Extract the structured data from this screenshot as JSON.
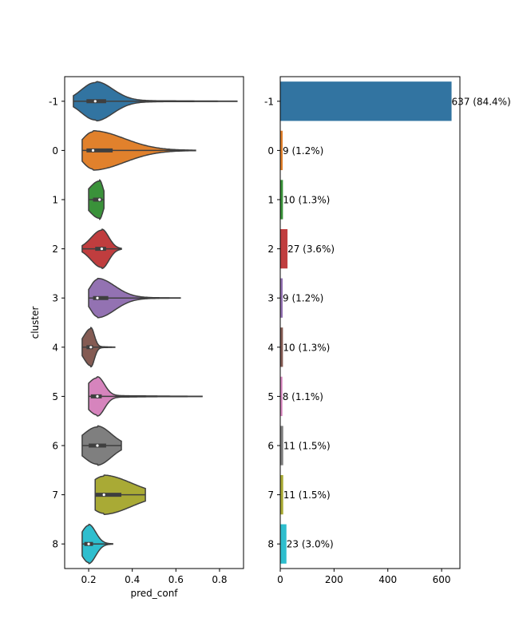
{
  "chart_data": [
    {
      "type": "violin",
      "xlabel": "pred_conf",
      "ylabel": "cluster",
      "xlim": [
        0.09,
        0.91
      ],
      "xticks": [
        "0.2",
        "0.4",
        "0.6",
        "0.8"
      ],
      "xtick_values": [
        0.2,
        0.4,
        0.6,
        0.8
      ],
      "categories": [
        "-1",
        "0",
        "1",
        "2",
        "3",
        "4",
        "5",
        "6",
        "7",
        "8"
      ],
      "series": [
        {
          "cluster": "-1",
          "min": 0.13,
          "max": 0.88,
          "q1": 0.19,
          "median": 0.23,
          "q3": 0.28,
          "color": "#3274a1"
        },
        {
          "cluster": "0",
          "min": 0.17,
          "max": 0.69,
          "q1": 0.19,
          "median": 0.22,
          "q3": 0.31,
          "color": "#e1812c"
        },
        {
          "cluster": "1",
          "min": 0.2,
          "max": 0.27,
          "q1": 0.22,
          "median": 0.25,
          "q3": 0.26,
          "color": "#3a923a"
        },
        {
          "cluster": "2",
          "min": 0.17,
          "max": 0.35,
          "q1": 0.23,
          "median": 0.26,
          "q3": 0.28,
          "color": "#c03d3e"
        },
        {
          "cluster": "3",
          "min": 0.2,
          "max": 0.62,
          "q1": 0.22,
          "median": 0.24,
          "q3": 0.29,
          "color": "#9372b2"
        },
        {
          "cluster": "4",
          "min": 0.17,
          "max": 0.32,
          "q1": 0.19,
          "median": 0.21,
          "q3": 0.22,
          "color": "#845b53"
        },
        {
          "cluster": "5",
          "min": 0.2,
          "max": 0.72,
          "q1": 0.21,
          "median": 0.24,
          "q3": 0.26,
          "color": "#d684bd"
        },
        {
          "cluster": "6",
          "min": 0.17,
          "max": 0.35,
          "q1": 0.2,
          "median": 0.24,
          "q3": 0.28,
          "color": "#7f7f7f"
        },
        {
          "cluster": "7",
          "min": 0.23,
          "max": 0.46,
          "q1": 0.23,
          "median": 0.27,
          "q3": 0.35,
          "color": "#a9aa35"
        },
        {
          "cluster": "8",
          "min": 0.17,
          "max": 0.31,
          "q1": 0.18,
          "median": 0.2,
          "q3": 0.22,
          "color": "#2ebece"
        }
      ]
    },
    {
      "type": "bar",
      "orientation": "horizontal",
      "xlim": [
        0,
        668
      ],
      "xticks": [
        "0",
        "200",
        "400",
        "600"
      ],
      "xtick_values": [
        0,
        200,
        400,
        600
      ],
      "categories": [
        "-1",
        "0",
        "1",
        "2",
        "3",
        "4",
        "5",
        "6",
        "7",
        "8"
      ],
      "values": [
        637,
        9,
        10,
        27,
        9,
        10,
        8,
        11,
        11,
        23
      ],
      "labels": [
        "637 (84.4%)",
        "9 (1.2%)",
        "10 (1.3%)",
        "27 (3.6%)",
        "9 (1.2%)",
        "10 (1.3%)",
        "8 (1.1%)",
        "11 (1.5%)",
        "11 (1.5%)",
        "23 (3.0%)"
      ],
      "colors": [
        "#3274a1",
        "#e1812c",
        "#3a923a",
        "#c03d3e",
        "#9372b2",
        "#845b53",
        "#d684bd",
        "#7f7f7f",
        "#a9aa35",
        "#2ebece"
      ]
    }
  ]
}
